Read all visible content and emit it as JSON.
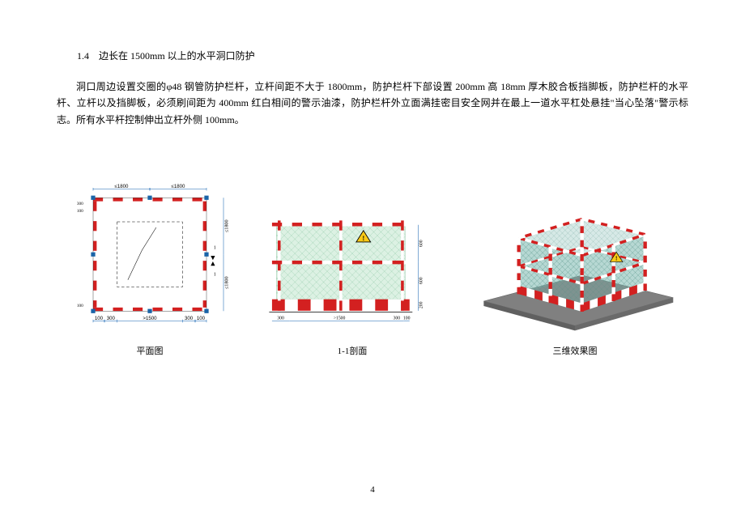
{
  "doc": {
    "section_title": "1.4　边长在 1500mm 以上的水平洞口防护",
    "body": "洞口周边设置交圈的φ48 钢管防护栏杆，立杆间距不大于 1800mm，防护栏杆下部设置 200mm 高 18mm 厚木胶合板挡脚板，防护栏杆的水平杆、立杆以及挡脚板，必须刷间距为 400mm 红白相间的警示油漆，防护栏杆外立面满挂密目安全网并在最上一道水平杠处悬挂\"当心坠落\"警示标志。所有水平杆控制伸出立杆外侧 100mm。",
    "page_number": "4"
  },
  "plan": {
    "caption": "平面图",
    "dims_top": [
      "≤1800",
      "≤1800"
    ],
    "dims_right": [
      "≤1800",
      "≤1800"
    ],
    "dims_left_small": [
      "300",
      "100"
    ],
    "dims_bottom_left": [
      "100",
      "300"
    ],
    "dim_bottom_center": ">1500",
    "dims_bottom_right": [
      "300",
      "100"
    ],
    "dim_left_bottom": "100",
    "section_mark": "1",
    "colors": {
      "red": "#d32020",
      "blue": "#1a64a8",
      "hatch": "#444444",
      "dim_line": "#1060b0"
    },
    "stripe_width": 6
  },
  "section": {
    "caption": "1-1剖面",
    "dims_bottom": [
      "300",
      ">1500",
      "300",
      "100"
    ],
    "dims_right": [
      "600",
      "600",
      "200"
    ],
    "warn_label": "⚠",
    "colors": {
      "red": "#d32020",
      "white": "#ffffff",
      "net": "#b9e4c7",
      "net_line": "#6bb58a",
      "dim_line": "#1060b0",
      "sign_yellow": "#f9c916",
      "sign_black": "#000000"
    }
  },
  "iso": {
    "caption": "三维效果图",
    "colors": {
      "red": "#d32020",
      "white": "#ffffff",
      "net": "#7bb8ad",
      "net_dark": "#4a8a7e",
      "floor": "#808080",
      "floor_light": "#a0a0a0",
      "sign_yellow": "#f9c916"
    }
  }
}
